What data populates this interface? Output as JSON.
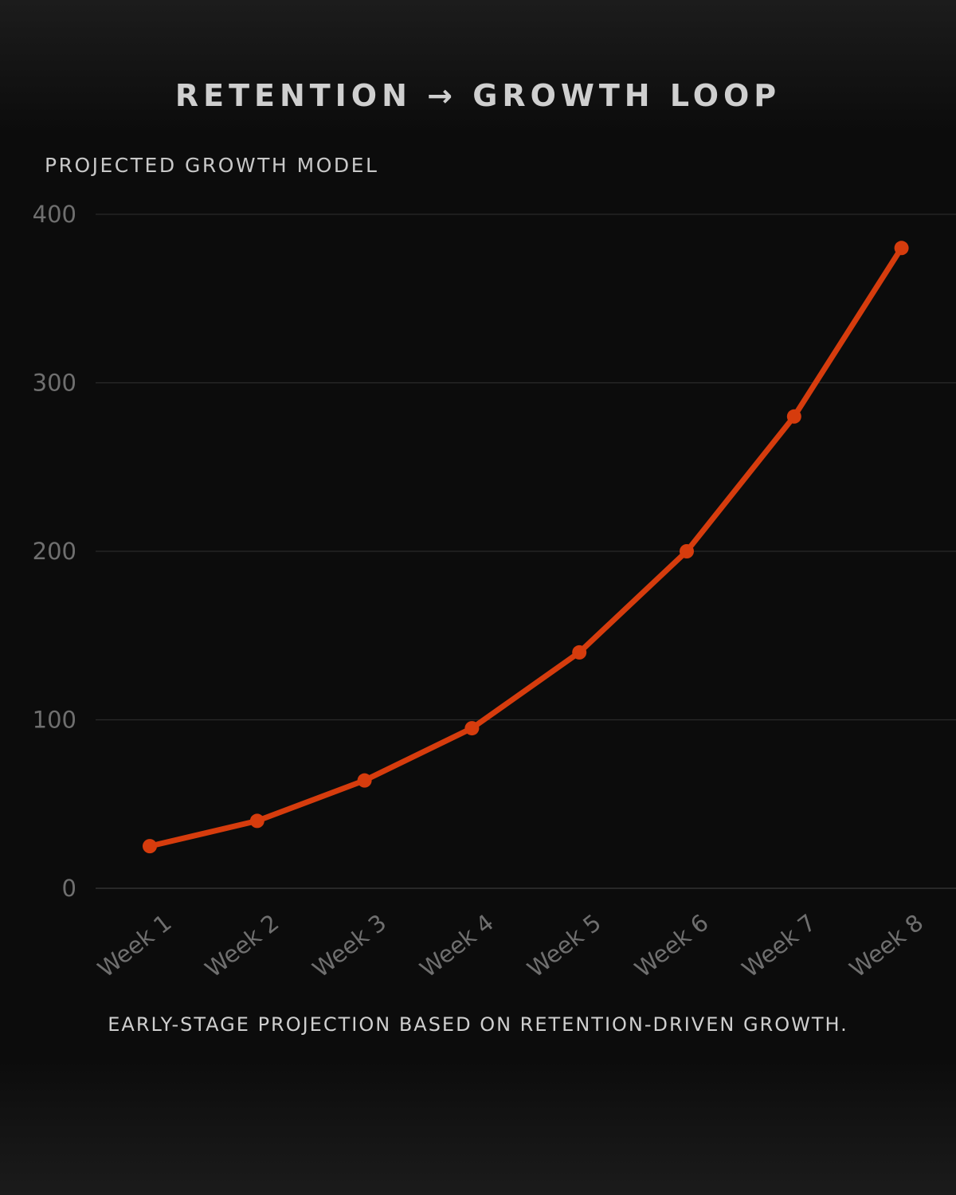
{
  "header": {
    "title": "RETENTION → GROWTH LOOP"
  },
  "footer": {
    "note": "EARLY-STAGE PROJECTION BASED ON RETENTION-DRIVEN GROWTH."
  },
  "colors": {
    "line": "#d63c0d",
    "grid": "#2a2a2a",
    "tick_text": "#6f6f6f"
  },
  "chart_data": {
    "type": "line",
    "title": "PROJECTED GROWTH MODEL",
    "xlabel": "",
    "ylabel": "",
    "categories": [
      "Week 1",
      "Week 2",
      "Week 3",
      "Week 4",
      "Week 5",
      "Week 6",
      "Week 7",
      "Week 8"
    ],
    "series": [
      {
        "values": [
          25,
          40,
          64,
          95,
          140,
          200,
          280,
          380
        ]
      }
    ],
    "ylim": [
      0,
      400
    ],
    "yticks": [
      0,
      100,
      200,
      300,
      400
    ],
    "grid": true,
    "legend": "none",
    "markers": true
  }
}
